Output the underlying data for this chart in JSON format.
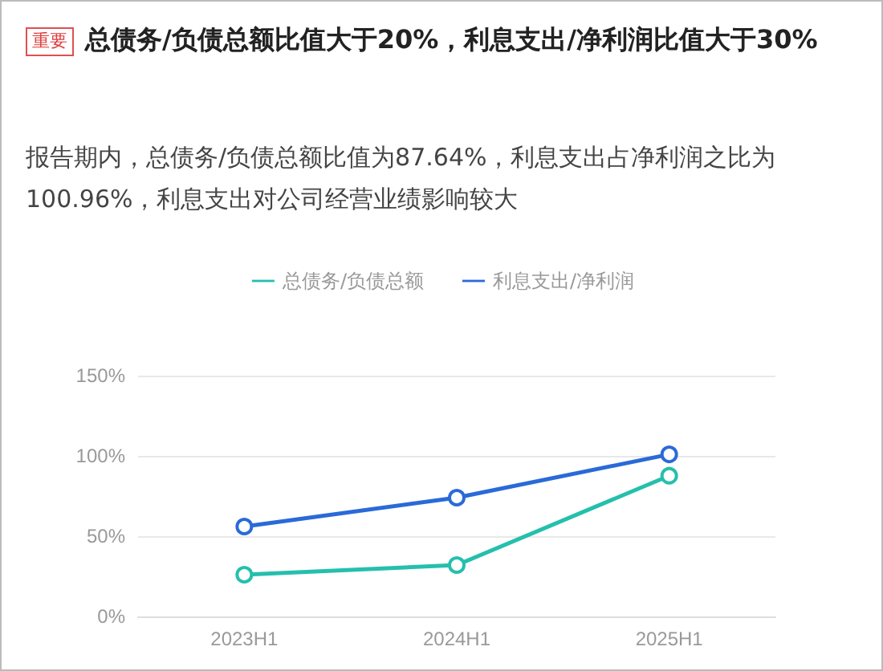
{
  "chart_data": {
    "type": "line",
    "title": "总债务/负债总额比值大于20%，利息支出/净利润比值大于30%",
    "subtitle": "报告期内，总债务/负债总额比值为87.64%，利息支出占净利润之比为100.96%，利息支出对公司经营业绩影响较大",
    "annotations": [
      "重要"
    ],
    "categories": [
      "2023H1",
      "2024H1",
      "2025H1"
    ],
    "series": [
      {
        "name": "总债务/负债总额",
        "color": "#25bfad",
        "values": [
          26,
          32,
          87.64
        ]
      },
      {
        "name": "利息支出/净利润",
        "color": "#2a6ad8",
        "values": [
          56,
          74,
          100.96
        ]
      }
    ],
    "ylim": [
      0,
      150
    ],
    "yticks": [
      {
        "value": 0,
        "label": "0%"
      },
      {
        "value": 50,
        "label": "50%"
      },
      {
        "value": 100,
        "label": "100%"
      },
      {
        "value": 150,
        "label": "150%"
      }
    ],
    "grid": "y",
    "legend": "top",
    "marker": "circle",
    "line_style": "solid"
  }
}
